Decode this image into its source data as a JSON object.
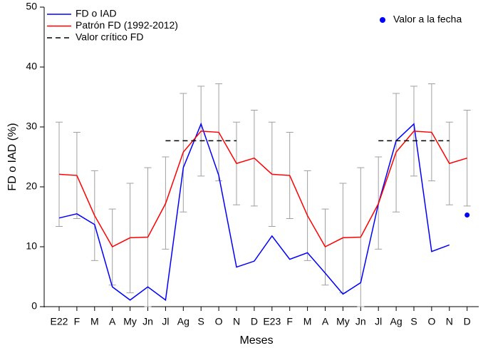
{
  "chart_data": {
    "type": "line",
    "xlabel": "Meses",
    "ylabel": "FD o IAD (%)",
    "categories": [
      "E22",
      "F",
      "M",
      "A",
      "My",
      "Jn",
      "Jl",
      "Ag",
      "S",
      "O",
      "N",
      "D",
      "E23",
      "F",
      "M",
      "A",
      "My",
      "Jn",
      "Jl",
      "Ag",
      "S",
      "O",
      "N",
      "D"
    ],
    "ylim": [
      0,
      50
    ],
    "yticks": [
      0,
      10,
      20,
      30,
      40,
      50
    ],
    "grid": false,
    "series": [
      {
        "name": "FD o IAD",
        "color": "#0000ff",
        "values": [
          14.8,
          15.5,
          13.7,
          3.3,
          1.1,
          3.3,
          1.1,
          23.2,
          30.5,
          21.9,
          6.6,
          7.6,
          11.8,
          7.9,
          9.0,
          5.6,
          2.1,
          4.0,
          17.2,
          27.7,
          30.5,
          9.2,
          10.3,
          null
        ]
      },
      {
        "name": "Patrón FD (1992-2012)",
        "color": "#ff0000",
        "error_color": "#a0a0a0",
        "values": [
          22.1,
          21.9,
          15.2,
          10.0,
          11.5,
          11.6,
          17.2,
          25.8,
          29.3,
          29.1,
          23.9,
          24.8,
          22.1,
          21.9,
          15.2,
          10.0,
          11.5,
          11.6,
          17.2,
          25.8,
          29.3,
          29.1,
          23.9,
          24.8
        ],
        "lower": [
          13.4,
          14.7,
          7.7,
          3.6,
          2.3,
          0,
          9.6,
          15.8,
          21.8,
          21.0,
          17.0,
          16.8,
          13.4,
          14.7,
          7.7,
          3.6,
          2.3,
          0,
          9.6,
          15.8,
          21.8,
          21.0,
          17.0,
          16.8
        ],
        "upper": [
          30.8,
          29.1,
          22.7,
          16.3,
          20.6,
          23.2,
          25.0,
          35.6,
          36.8,
          37.2,
          30.8,
          32.8,
          30.8,
          29.1,
          22.7,
          16.3,
          20.6,
          23.2,
          25.0,
          35.6,
          36.8,
          37.2,
          30.8,
          32.8
        ]
      },
      {
        "name": "Valor crítico FD",
        "color": "#000000",
        "dashed": true,
        "values": [
          null,
          null,
          null,
          null,
          null,
          null,
          27.7,
          27.7,
          27.7,
          27.7,
          27.7,
          null,
          null,
          null,
          null,
          null,
          null,
          null,
          27.7,
          27.7,
          27.7,
          27.7,
          27.7,
          null
        ]
      },
      {
        "name": "Valor a la fecha",
        "color": "#0000ff",
        "marker": true,
        "values": [
          null,
          null,
          null,
          null,
          null,
          null,
          null,
          null,
          null,
          null,
          null,
          null,
          null,
          null,
          null,
          null,
          null,
          null,
          null,
          null,
          null,
          null,
          null,
          15.3
        ]
      }
    ]
  }
}
